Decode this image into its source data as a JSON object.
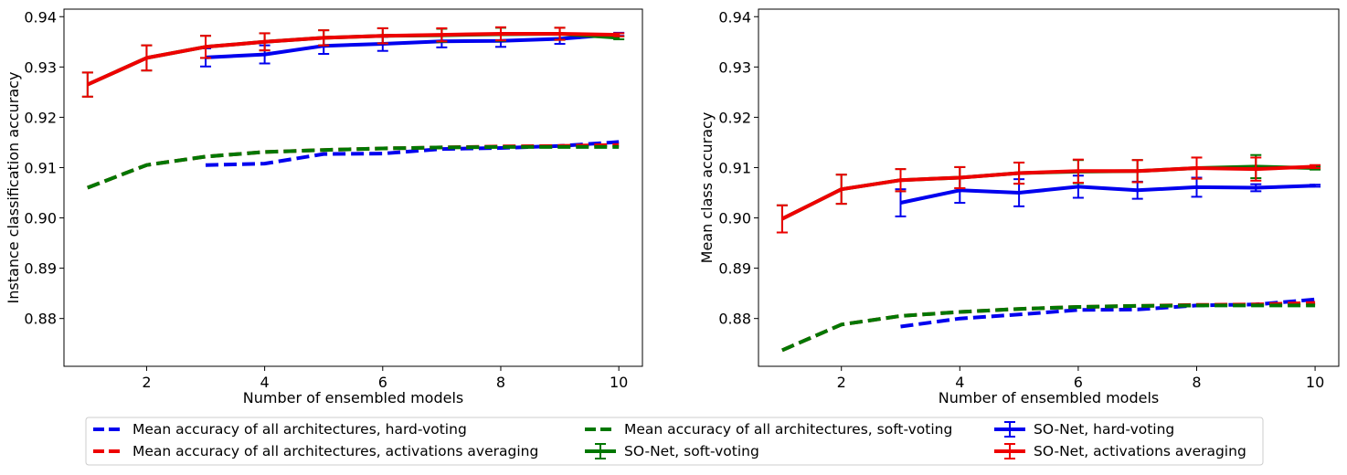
{
  "legend": {
    "entries": [
      {
        "key": "mean_hard",
        "label": "Mean accuracy of all architectures, hard-voting"
      },
      {
        "key": "mean_avg",
        "label": "Mean accuracy of all architectures, activations averaging"
      },
      {
        "key": "mean_soft",
        "label": "Mean accuracy of all architectures, soft-voting"
      },
      {
        "key": "so_soft",
        "label": "SO-Net, soft-voting"
      },
      {
        "key": "so_hard",
        "label": "SO-Net, hard-voting"
      },
      {
        "key": "so_avg",
        "label": "SO-Net, activations averaging"
      }
    ]
  },
  "colors": {
    "hard": "#0000ee",
    "avg": "#ee0000",
    "soft": "#007700"
  },
  "chart_data": [
    {
      "type": "line",
      "xlabel": "Number of ensembled models",
      "ylabel": "Instance classification accuracy",
      "xlim": [
        0.6,
        10.4
      ],
      "ylim": [
        0.8705,
        0.9415
      ],
      "xticks": [
        2,
        4,
        6,
        8,
        10
      ],
      "yticks": [
        0.88,
        0.89,
        0.9,
        0.91,
        0.92,
        0.93,
        0.94
      ],
      "ytick_labels": [
        "0.88",
        "0.89",
        "0.90",
        "0.91",
        "0.92",
        "0.93",
        "0.94"
      ],
      "grid": false,
      "series": [
        {
          "key": "mean_hard",
          "style": "dashed",
          "color": "hard",
          "x": [
            3,
            4,
            5,
            6,
            7,
            8,
            9,
            10
          ],
          "y": [
            0.9105,
            0.9108,
            0.9127,
            0.9128,
            0.9137,
            0.9139,
            0.9143,
            0.9151
          ]
        },
        {
          "key": "mean_avg",
          "style": "dashed",
          "color": "avg",
          "x": [
            1,
            2,
            3,
            4,
            5,
            6,
            7,
            8,
            9,
            10
          ],
          "y": [
            0.906,
            0.9105,
            0.9122,
            0.9131,
            0.9135,
            0.9138,
            0.914,
            0.9142,
            0.9143,
            0.9145
          ]
        },
        {
          "key": "mean_soft",
          "style": "dashed",
          "color": "soft",
          "x": [
            1,
            2,
            3,
            4,
            5,
            6,
            7,
            8,
            9,
            10
          ],
          "y": [
            0.906,
            0.9105,
            0.9122,
            0.9131,
            0.9135,
            0.9138,
            0.914,
            0.9141,
            0.9141,
            0.9141
          ]
        },
        {
          "key": "so_hard",
          "style": "solid",
          "color": "hard",
          "x": [
            3,
            4,
            5,
            6,
            7,
            8,
            9,
            10
          ],
          "y": [
            0.9319,
            0.9325,
            0.9342,
            0.9346,
            0.9351,
            0.9352,
            0.9356,
            0.9365
          ],
          "err": [
            0.0018,
            0.0018,
            0.0016,
            0.0014,
            0.0012,
            0.0012,
            0.001,
            0.0003
          ]
        },
        {
          "key": "so_soft",
          "style": "solid",
          "color": "soft",
          "x": [
            1,
            2,
            3,
            4,
            5,
            6,
            7,
            8,
            9,
            10
          ],
          "y": [
            0.9265,
            0.9318,
            0.934,
            0.935,
            0.9358,
            0.9362,
            0.9363,
            0.9365,
            0.9366,
            0.9358
          ],
          "err": [
            0.0024,
            0.0025,
            0.0022,
            0.0017,
            0.0015,
            0.0015,
            0.0013,
            0.0013,
            0.0012,
            0.0003
          ]
        },
        {
          "key": "so_avg",
          "style": "solid",
          "color": "avg",
          "x": [
            1,
            2,
            3,
            4,
            5,
            6,
            7,
            8,
            9,
            10
          ],
          "y": [
            0.9265,
            0.9318,
            0.934,
            0.935,
            0.9358,
            0.9362,
            0.9364,
            0.9366,
            0.9366,
            0.9364
          ],
          "err": [
            0.0024,
            0.0025,
            0.0022,
            0.0017,
            0.0015,
            0.0015,
            0.0013,
            0.0013,
            0.0012,
            0.0003
          ]
        }
      ]
    },
    {
      "type": "line",
      "xlabel": "Number of ensembled models",
      "ylabel": "Mean class accuracy",
      "xlim": [
        0.6,
        10.4
      ],
      "ylim": [
        0.8705,
        0.9415
      ],
      "xticks": [
        2,
        4,
        6,
        8,
        10
      ],
      "yticks": [
        0.88,
        0.89,
        0.9,
        0.91,
        0.92,
        0.93,
        0.94
      ],
      "ytick_labels": [
        "0.88",
        "0.89",
        "0.90",
        "0.91",
        "0.92",
        "0.93",
        "0.94"
      ],
      "grid": false,
      "series": [
        {
          "key": "mean_hard",
          "style": "dashed",
          "color": "hard",
          "x": [
            3,
            4,
            5,
            6,
            7,
            8,
            9,
            10
          ],
          "y": [
            0.8784,
            0.88,
            0.8808,
            0.8817,
            0.8818,
            0.8826,
            0.8828,
            0.8838
          ]
        },
        {
          "key": "mean_avg",
          "style": "dashed",
          "color": "avg",
          "x": [
            1,
            2,
            3,
            4,
            5,
            6,
            7,
            8,
            9,
            10
          ],
          "y": [
            0.8737,
            0.8788,
            0.8805,
            0.8813,
            0.8819,
            0.8823,
            0.8825,
            0.8827,
            0.8828,
            0.8831
          ]
        },
        {
          "key": "mean_soft",
          "style": "dashed",
          "color": "soft",
          "x": [
            1,
            2,
            3,
            4,
            5,
            6,
            7,
            8,
            9,
            10
          ],
          "y": [
            0.8737,
            0.8788,
            0.8805,
            0.8813,
            0.8819,
            0.8823,
            0.8825,
            0.8826,
            0.8826,
            0.8826
          ]
        },
        {
          "key": "so_hard",
          "style": "solid",
          "color": "hard",
          "x": [
            3,
            4,
            5,
            6,
            7,
            8,
            9,
            10
          ],
          "y": [
            0.903,
            0.9055,
            0.905,
            0.9062,
            0.9055,
            0.9061,
            0.906,
            0.9064
          ],
          "err": [
            0.0027,
            0.0025,
            0.0027,
            0.0022,
            0.0017,
            0.0019,
            0.0007,
            0.0002
          ]
        },
        {
          "key": "so_soft",
          "style": "solid",
          "color": "soft",
          "x": [
            1,
            2,
            3,
            4,
            5,
            6,
            7,
            8,
            9,
            10
          ],
          "y": [
            0.8998,
            0.9057,
            0.9075,
            0.908,
            0.9089,
            0.9092,
            0.9093,
            0.9099,
            0.9102,
            0.9099
          ],
          "err": [
            0.0027,
            0.0029,
            0.0022,
            0.0021,
            0.0021,
            0.0023,
            0.0022,
            0.0021,
            0.0023,
            0.0003
          ]
        },
        {
          "key": "so_avg",
          "style": "solid",
          "color": "avg",
          "x": [
            1,
            2,
            3,
            4,
            5,
            6,
            7,
            8,
            9,
            10
          ],
          "y": [
            0.8998,
            0.9057,
            0.9075,
            0.908,
            0.9089,
            0.9093,
            0.9093,
            0.9099,
            0.9097,
            0.9102
          ],
          "err": [
            0.0027,
            0.0029,
            0.0022,
            0.0021,
            0.0021,
            0.0023,
            0.0022,
            0.0021,
            0.0023,
            0.0003
          ]
        }
      ]
    }
  ]
}
